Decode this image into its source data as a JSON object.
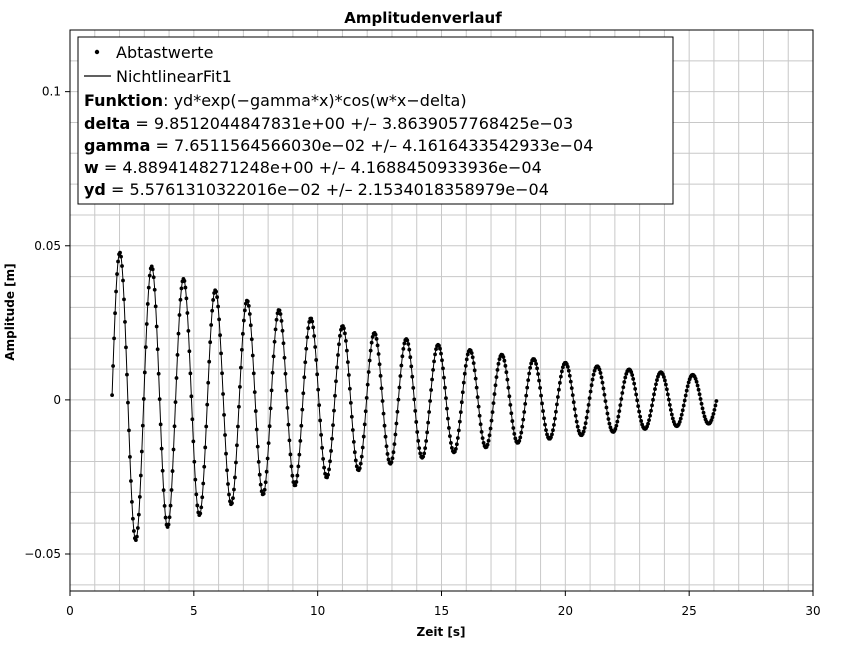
{
  "chart_data": {
    "type": "scatter",
    "title": "Amplitudenverlauf",
    "xlabel": "Zeit [s]",
    "ylabel": "Amplitude [m]",
    "xlim": [
      0,
      30
    ],
    "ylim": [
      -0.062,
      0.12
    ],
    "x_ticks": [
      0,
      5,
      10,
      15,
      20,
      25,
      30
    ],
    "x_tick_labels": [
      "0",
      "5",
      "10",
      "15",
      "20",
      "25",
      "30"
    ],
    "y_ticks": [
      -0.05,
      0,
      0.05,
      0.1
    ],
    "y_tick_labels": [
      "−0.05",
      "0",
      "0.05",
      "0.1"
    ],
    "grid": true,
    "legend_position": "top-left",
    "series": [
      {
        "name": "Abtastwerte",
        "style": "points",
        "x_range": [
          1.7,
          26.1
        ],
        "sample_step": 0.04
      },
      {
        "name": "NichtlinearFit1",
        "style": "line",
        "x_range": [
          1.7,
          26.1
        ]
      }
    ],
    "fit": {
      "function_label": "Funktion",
      "function": "yd*exp(−gamma*x)*cos(w*x−delta)",
      "params": [
        {
          "name": "delta",
          "value": 9.8512044847831,
          "value_text": "9.8512044847831e+00",
          "error_text": "3.8639057768425e−03"
        },
        {
          "name": "gamma",
          "value": 0.07651156456603,
          "value_text": "7.6511564566030e−02",
          "error_text": "4.1616433542933e−04"
        },
        {
          "name": "w",
          "value": 4.8894148271248,
          "value_text": "4.8894148271248e+00",
          "error_text": "4.1688450933936e−04"
        },
        {
          "name": "yd",
          "value": 0.055761310322016,
          "value_text": "5.5761310322016e−02",
          "error_text": "2.1534018358979e−04"
        }
      ]
    }
  },
  "colors": {
    "data": "#000000",
    "grid": "#c8c8c8",
    "axis": "#000000"
  }
}
